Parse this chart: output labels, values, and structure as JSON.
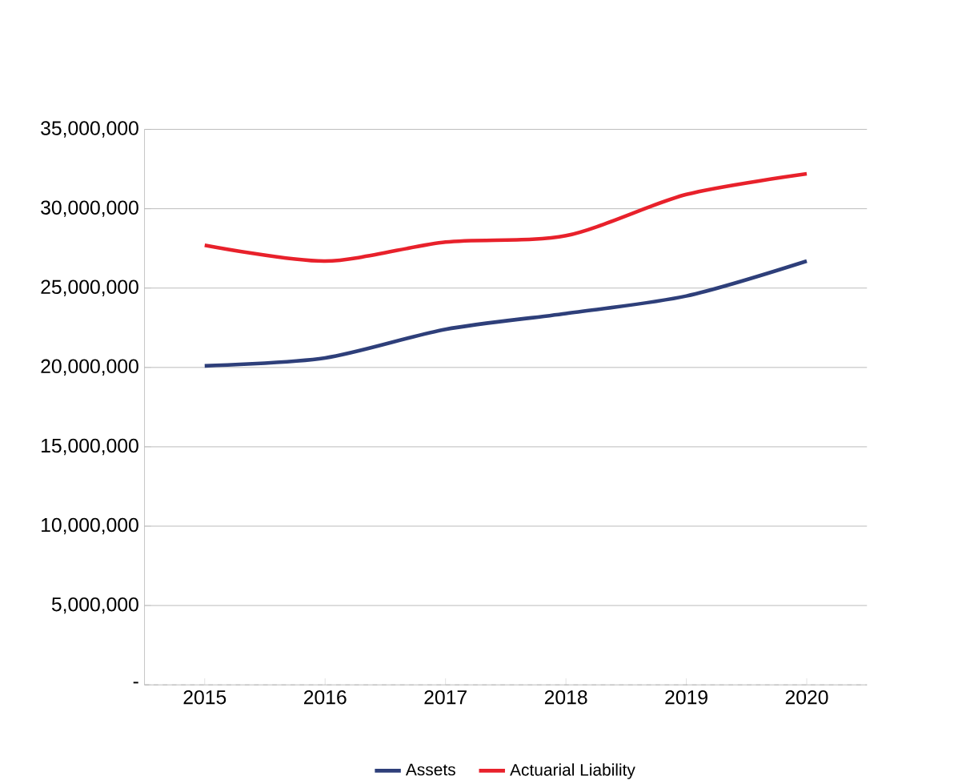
{
  "chart_data": {
    "type": "line",
    "categories": [
      "2015",
      "2016",
      "2017",
      "2018",
      "2019",
      "2020"
    ],
    "series": [
      {
        "name": "Assets",
        "color": "#2e3f7a",
        "values": [
          20100000,
          20600000,
          22400000,
          23400000,
          24500000,
          26700000
        ]
      },
      {
        "name": "Actuarial Liability",
        "color": "#e8212b",
        "values": [
          27700000,
          26700000,
          27900000,
          28300000,
          30900000,
          32200000
        ]
      }
    ],
    "ylim": [
      0,
      35000000
    ],
    "yticks": [
      {
        "value": 0,
        "label": "-"
      },
      {
        "value": 5000000,
        "label": "5,000,000"
      },
      {
        "value": 10000000,
        "label": "10,000,000"
      },
      {
        "value": 15000000,
        "label": "15,000,000"
      },
      {
        "value": 20000000,
        "label": "20,000,000"
      },
      {
        "value": 25000000,
        "label": "25,000,000"
      },
      {
        "value": 30000000,
        "label": "30,000,000"
      },
      {
        "value": 35000000,
        "label": "35,000,000"
      }
    ],
    "grid": "y",
    "legend": "bottom",
    "marker": "none",
    "line_style": "solid"
  }
}
